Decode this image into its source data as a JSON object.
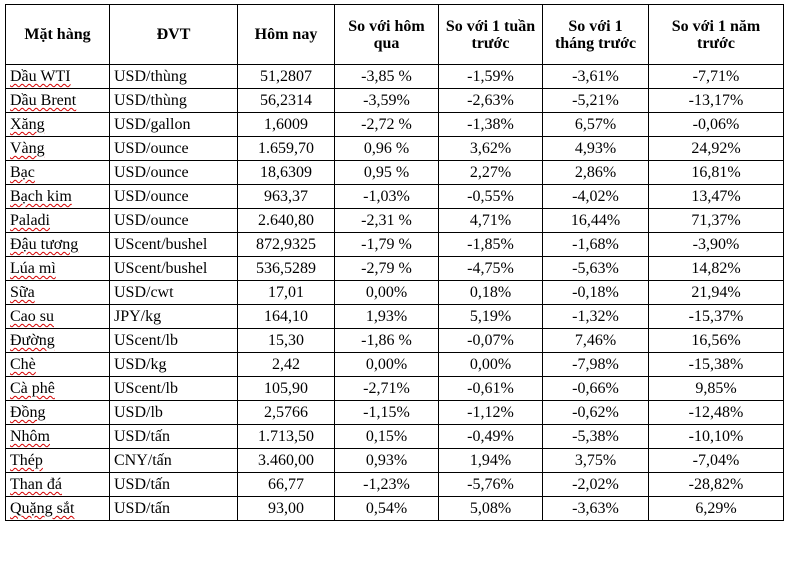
{
  "table": {
    "headers": [
      "Mặt hàng",
      "ĐVT",
      "Hôm nay",
      "So với hôm qua",
      "So với 1 tuần trước",
      "So với 1 tháng trước",
      "So với 1 năm trước"
    ],
    "rows": [
      {
        "item": "Dầu WTI",
        "unit": "USD/thùng",
        "today": "51,2807",
        "vs_yesterday": "-3,85 %",
        "vs_week": "-1,59%",
        "vs_month": "-3,61%",
        "vs_year": "-7,71%"
      },
      {
        "item": "Dầu Brent",
        "unit": "USD/thùng",
        "today": "56,2314",
        "vs_yesterday": "-3,59%",
        "vs_week": "-2,63%",
        "vs_month": "-5,21%",
        "vs_year": "-13,17%"
      },
      {
        "item": "Xăng",
        "unit": "USD/gallon",
        "today": "1,6009",
        "vs_yesterday": "-2,72 %",
        "vs_week": "-1,38%",
        "vs_month": "6,57%",
        "vs_year": "-0,06%"
      },
      {
        "item": "Vàng",
        "unit": "USD/ounce",
        "today": "1.659,70",
        "vs_yesterday": "0,96 %",
        "vs_week": "3,62%",
        "vs_month": "4,93%",
        "vs_year": "24,92%"
      },
      {
        "item": "Bạc",
        "unit": "USD/ounce",
        "today": "18,6309",
        "vs_yesterday": "0,95 %",
        "vs_week": "2,27%",
        "vs_month": "2,86%",
        "vs_year": "16,81%"
      },
      {
        "item": "Bạch kim",
        "unit": "USD/ounce",
        "today": "963,37",
        "vs_yesterday": "-1,03%",
        "vs_week": "-0,55%",
        "vs_month": "-4,02%",
        "vs_year": "13,47%"
      },
      {
        "item": "Paladi",
        "unit": "USD/ounce",
        "today": "2.640,80",
        "vs_yesterday": "-2,31 %",
        "vs_week": "4,71%",
        "vs_month": "16,44%",
        "vs_year": "71,37%"
      },
      {
        "item": "Đậu tương",
        "unit": "UScent/bushel",
        "today": "872,9325",
        "vs_yesterday": "-1,79 %",
        "vs_week": "-1,85%",
        "vs_month": "-1,68%",
        "vs_year": "-3,90%"
      },
      {
        "item": "Lúa mì",
        "unit": "UScent/bushel",
        "today": "536,5289",
        "vs_yesterday": "-2,79 %",
        "vs_week": "-4,75%",
        "vs_month": "-5,63%",
        "vs_year": "14,82%"
      },
      {
        "item": "Sữa",
        "unit": "USD/cwt",
        "today": "17,01",
        "vs_yesterday": "0,00%",
        "vs_week": "0,18%",
        "vs_month": "-0,18%",
        "vs_year": "21,94%"
      },
      {
        "item": "Cao su",
        "unit": "JPY/kg",
        "today": "164,10",
        "vs_yesterday": "1,93%",
        "vs_week": "5,19%",
        "vs_month": "-1,32%",
        "vs_year": "-15,37%"
      },
      {
        "item": "Đường",
        "unit": "UScent/lb",
        "today": "15,30",
        "vs_yesterday": "-1,86 %",
        "vs_week": "-0,07%",
        "vs_month": "7,46%",
        "vs_year": "16,56%"
      },
      {
        "item": "Chè",
        "unit": "USD/kg",
        "today": "2,42",
        "vs_yesterday": "0,00%",
        "vs_week": "0,00%",
        "vs_month": "-7,98%",
        "vs_year": "-15,38%"
      },
      {
        "item": "Cà phê",
        "unit": "UScent/lb",
        "today": "105,90",
        "vs_yesterday": "-2,71%",
        "vs_week": "-0,61%",
        "vs_month": "-0,66%",
        "vs_year": "9,85%"
      },
      {
        "item": "Đồng",
        "unit": "USD/lb",
        "today": "2,5766",
        "vs_yesterday": "-1,15%",
        "vs_week": "-1,12%",
        "vs_month": "-0,62%",
        "vs_year": "-12,48%"
      },
      {
        "item": "Nhôm",
        "unit": "USD/tấn",
        "today": "1.713,50",
        "vs_yesterday": "0,15%",
        "vs_week": "-0,49%",
        "vs_month": "-5,38%",
        "vs_year": "-10,10%"
      },
      {
        "item": "Thép",
        "unit": "CNY/tấn",
        "today": "3.460,00",
        "vs_yesterday": "0,93%",
        "vs_week": "1,94%",
        "vs_month": "3,75%",
        "vs_year": "-7,04%"
      },
      {
        "item": "Than đá",
        "unit": "USD/tấn",
        "today": "66,77",
        "vs_yesterday": "-1,23%",
        "vs_week": "-5,76%",
        "vs_month": "-2,02%",
        "vs_year": "-28,82%"
      },
      {
        "item": "Quặng sắt",
        "unit": "USD/tấn",
        "today": "93,00",
        "vs_yesterday": "0,54%",
        "vs_week": "5,08%",
        "vs_month": "-3,63%",
        "vs_year": "6,29%"
      }
    ]
  }
}
